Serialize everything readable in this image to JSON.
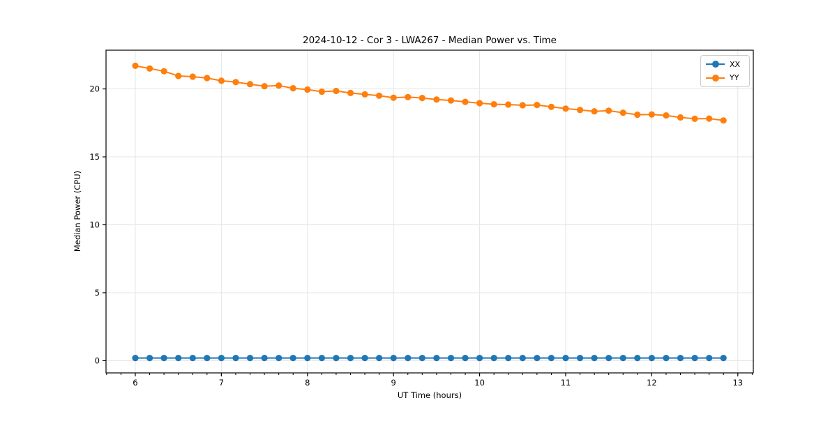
{
  "figure": {
    "title": "2024-10-12 - Cor 3 - LWA267 - Median Power vs. Time"
  },
  "chart_data": {
    "type": "line",
    "title": "2024-10-12 - Cor 3 - LWA267 - Median Power vs. Time",
    "xlabel": "UT Time (hours)",
    "ylabel": "Median Power (CPU)",
    "xlim": [
      5.66,
      13.18
    ],
    "ylim": [
      -0.9,
      22.85
    ],
    "xticks": [
      6,
      7,
      8,
      9,
      10,
      11,
      12,
      13
    ],
    "yticks": [
      0,
      5,
      10,
      15,
      20
    ],
    "x_minor_step": 0.16667,
    "grid": true,
    "grid_color": "#e5e5e5",
    "spine_color": "#000000",
    "legend_position": "upper right",
    "x": [
      6.0,
      6.167,
      6.333,
      6.5,
      6.667,
      6.833,
      7.0,
      7.167,
      7.333,
      7.5,
      7.667,
      7.833,
      8.0,
      8.167,
      8.333,
      8.5,
      8.667,
      8.833,
      9.0,
      9.167,
      9.333,
      9.5,
      9.667,
      9.833,
      10.0,
      10.167,
      10.333,
      10.5,
      10.667,
      10.833,
      11.0,
      11.167,
      11.333,
      11.5,
      11.667,
      11.833,
      12.0,
      12.167,
      12.333,
      12.5,
      12.667,
      12.833
    ],
    "series": [
      {
        "name": "XX",
        "color": "#1f77b4",
        "values": [
          0.2,
          0.2,
          0.2,
          0.2,
          0.2,
          0.2,
          0.2,
          0.2,
          0.2,
          0.2,
          0.2,
          0.2,
          0.2,
          0.2,
          0.2,
          0.2,
          0.2,
          0.2,
          0.2,
          0.2,
          0.2,
          0.2,
          0.2,
          0.2,
          0.2,
          0.2,
          0.2,
          0.2,
          0.2,
          0.2,
          0.2,
          0.2,
          0.2,
          0.2,
          0.2,
          0.2,
          0.2,
          0.2,
          0.2,
          0.2,
          0.2,
          0.2
        ]
      },
      {
        "name": "YY",
        "color": "#ff7f0e",
        "values": [
          21.7,
          21.5,
          21.3,
          20.95,
          20.9,
          20.8,
          20.6,
          20.5,
          20.35,
          20.2,
          20.25,
          20.05,
          19.95,
          19.8,
          19.85,
          19.7,
          19.6,
          19.5,
          19.35,
          19.4,
          19.33,
          19.22,
          19.15,
          19.05,
          18.95,
          18.87,
          18.85,
          18.8,
          18.82,
          18.68,
          18.55,
          18.45,
          18.35,
          18.4,
          18.25,
          18.1,
          18.12,
          18.05,
          17.9,
          17.8,
          17.82,
          17.68
        ]
      }
    ],
    "legend": {
      "entries": [
        {
          "label": "XX",
          "color": "#1f77b4"
        },
        {
          "label": "YY",
          "color": "#ff7f0e"
        }
      ]
    }
  }
}
